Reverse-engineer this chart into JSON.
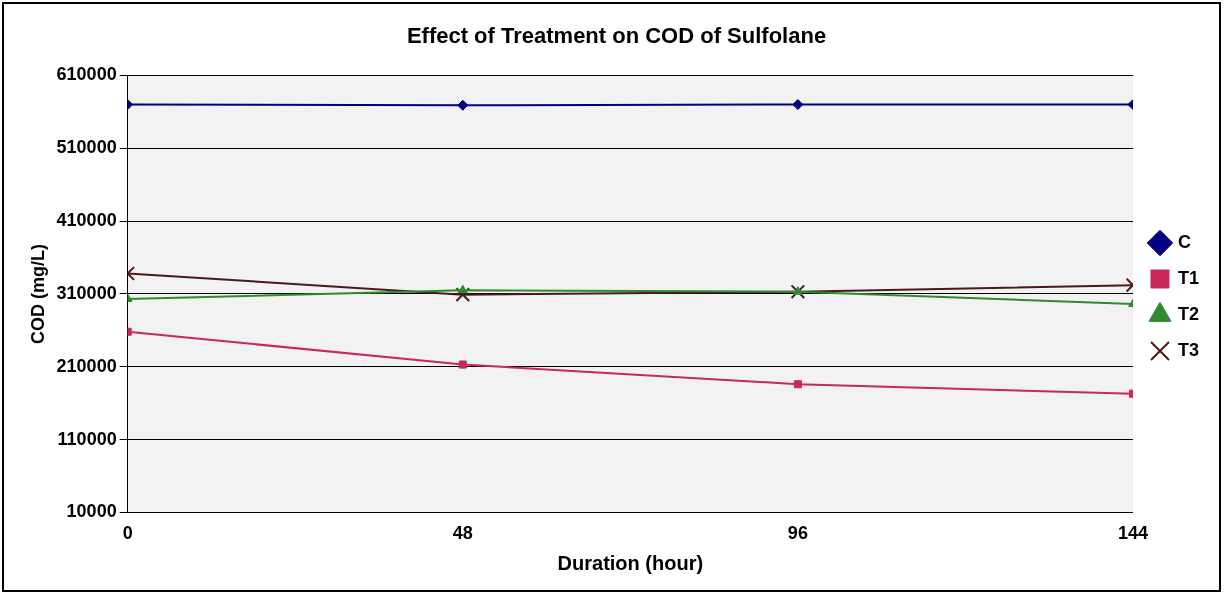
{
  "chart_data": {
    "type": "line",
    "title": "Effect of Treatment on COD of Sulfolane",
    "xlabel": "Duration (hour)",
    "ylabel": "COD (mg/L)",
    "x": [
      0,
      48,
      96,
      144
    ],
    "xlim": [
      0,
      144
    ],
    "xticks": [
      0,
      48,
      96,
      144
    ],
    "ylim": [
      10000,
      610000
    ],
    "yticks": [
      10000,
      110000,
      210000,
      310000,
      410000,
      510000,
      610000
    ],
    "grid": "y",
    "legend": "right",
    "line_style": "solid",
    "series": [
      {
        "name": "C",
        "color": "#000080",
        "marker": "diamond",
        "values": [
          570000,
          569000,
          570000,
          570000
        ]
      },
      {
        "name": "T1",
        "color": "#c8285a",
        "marker": "square",
        "values": [
          258000,
          213000,
          186000,
          173000
        ]
      },
      {
        "name": "T2",
        "color": "#2e8b2e",
        "marker": "triangle",
        "values": [
          303000,
          315000,
          313000,
          296000
        ]
      },
      {
        "name": "T3",
        "color": "#4a1a1a",
        "marker": "cross",
        "values": [
          338000,
          309000,
          313000,
          322000
        ]
      }
    ]
  }
}
